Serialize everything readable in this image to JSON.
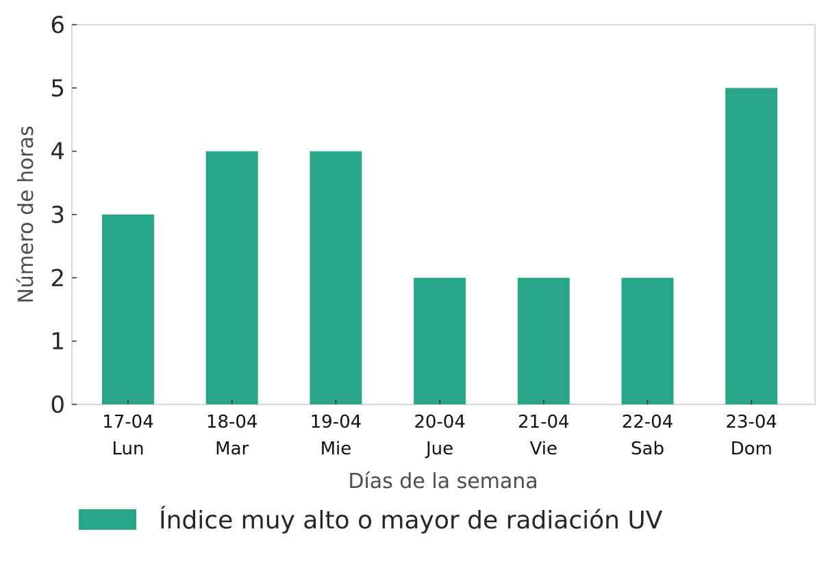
{
  "chart_data": {
    "type": "bar",
    "title": "",
    "xlabel": "Días de la semana",
    "ylabel": "Número de horas",
    "ylim": [
      0,
      6
    ],
    "yticks": [
      0,
      1,
      2,
      3,
      4,
      5,
      6
    ],
    "grid": false,
    "legend_position": "bottom-left",
    "categories": [
      [
        "17-04",
        "Lun"
      ],
      [
        "18-04",
        "Mar"
      ],
      [
        "19-04",
        "Mie"
      ],
      [
        "20-04",
        "Jue"
      ],
      [
        "21-04",
        "Vie"
      ],
      [
        "22-04",
        "Sab"
      ],
      [
        "23-04",
        "Dom"
      ]
    ],
    "series": [
      {
        "name": "Índice muy alto o mayor de radiación UV",
        "color": "#28a687",
        "values": [
          3,
          4,
          4,
          2,
          2,
          2,
          5
        ]
      }
    ]
  }
}
